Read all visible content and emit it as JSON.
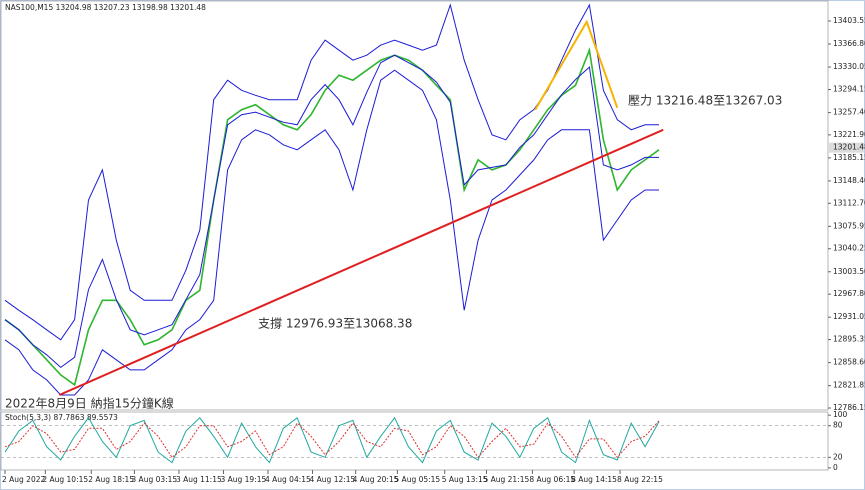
{
  "chart_data": [
    {
      "type": "line",
      "title": "NAS100,M15  13204.98 13207.23 13198.98 13201.48",
      "annotations": [
        "壓力 13216.48至13267.03",
        "支撐 12976.93至13068.38",
        "2022年8月9日 納指15分鐘K線"
      ],
      "x": [
        0,
        10,
        20,
        30,
        40,
        50,
        60,
        70,
        80,
        90,
        100,
        110,
        120,
        130,
        140,
        150,
        160,
        170,
        180,
        190,
        200,
        210,
        220,
        230,
        240,
        250,
        260,
        270,
        280,
        290,
        300,
        310,
        320,
        330,
        340,
        350,
        360,
        370,
        380,
        390,
        400,
        410,
        420,
        430,
        440,
        450,
        460,
        470
      ],
      "xlim": [
        0,
        590
      ],
      "xticks": [
        {
          "value": 0,
          "label": "2 Aug 2022"
        },
        {
          "value": 29,
          "label": "2 Aug 10:15"
        },
        {
          "value": 62,
          "label": "2 Aug 18:15"
        },
        {
          "value": 93,
          "label": "3 Aug 03:15"
        },
        {
          "value": 125,
          "label": "3 Aug 11:15"
        },
        {
          "value": 157,
          "label": "3 Aug 19:15"
        },
        {
          "value": 189,
          "label": "4 Aug 04:15"
        },
        {
          "value": 221,
          "label": "4 Aug 12:15"
        },
        {
          "value": 252,
          "label": "4 Aug 20:15"
        },
        {
          "value": 282,
          "label": "5 Aug 05:15"
        },
        {
          "value": 316,
          "label": "5 Aug 13:15"
        },
        {
          "value": 346,
          "label": "5 Aug 21:15"
        },
        {
          "value": 379,
          "label": "8 Aug 06:15"
        },
        {
          "value": 409,
          "label": "8 Aug 14:15"
        },
        {
          "value": 442,
          "label": "8 Aug 22:15"
        }
      ],
      "ylim": [
        12783,
        13437
      ],
      "yticks": [
        13403.55,
        {
          "value": 13366.8,
          "label": "13366.80"
        },
        {
          "value": 13330.05,
          "label": "13330.05"
        },
        {
          "value": 13294.15,
          "label": "13294.15"
        },
        {
          "value": 13257.4,
          "label": "13257.40"
        },
        {
          "value": 13221.9,
          "label": "13221.90"
        },
        {
          "value": 13185.15,
          "label": "13185.15"
        },
        {
          "value": 13148.4,
          "label": "13148.40"
        },
        {
          "value": 13112.7,
          "label": "13112.70"
        },
        13075.95,
        13040.25,
        {
          "value": 13003.5,
          "label": "13003.50"
        },
        {
          "value": 12967.8,
          "label": "12967.80"
        },
        12931.05,
        12895.35,
        {
          "value": 12858.6,
          "label": "12858.60"
        },
        12821.85,
        12786.15
      ],
      "last_price": 13201.48,
      "series": [
        {
          "name": "price",
          "color": "#2fb52f",
          "values": [
            12927,
            12911,
            12887,
            12863,
            12839,
            12823,
            12911,
            12958,
            12958,
            12927,
            12887,
            12895,
            12911,
            12958,
            12974,
            13118,
            13246,
            13262,
            13270,
            13254,
            13238,
            13230,
            13254,
            13293,
            13317,
            13309,
            13325,
            13341,
            13349,
            13341,
            13325,
            13301,
            13278,
            13134,
            13182,
            13166,
            13174,
            13198,
            13230,
            13262,
            13285,
            13301,
            13357,
            13214,
            13134,
            13166,
            13182,
            13198
          ]
        },
        {
          "name": "upper",
          "color": "#1c1cd6",
          "values": [
            12958,
            12942,
            12927,
            12911,
            12895,
            12927,
            13118,
            13166,
            13054,
            12974,
            12958,
            12958,
            12958,
            13006,
            13070,
            13278,
            13309,
            13293,
            13285,
            13278,
            13278,
            13278,
            13341,
            13373,
            13357,
            13341,
            13349,
            13365,
            13373,
            13365,
            13357,
            13365,
            13429,
            13341,
            13278,
            13222,
            13214,
            13246,
            13262,
            13293,
            13341,
            13389,
            13429,
            13293,
            13246,
            13230,
            13238,
            13238
          ]
        },
        {
          "name": "middle",
          "color": "#1c1cd6",
          "values": [
            12927,
            12911,
            12887,
            12871,
            12851,
            12867,
            12975,
            13023,
            12959,
            12911,
            12903,
            12911,
            12919,
            12959,
            12999,
            13118,
            13238,
            13254,
            13258,
            13250,
            13242,
            13238,
            13278,
            13302,
            13278,
            13238,
            13290,
            13337,
            13349,
            13337,
            13325,
            13306,
            13274,
            13142,
            13166,
            13170,
            13174,
            13202,
            13222,
            13254,
            13286,
            13310,
            13330,
            13174,
            13166,
            13174,
            13186,
            13186
          ]
        },
        {
          "name": "lower",
          "color": "#1c1cd6",
          "values": [
            12895,
            12879,
            12847,
            12831,
            12807,
            12807,
            12831,
            12879,
            12863,
            12847,
            12847,
            12863,
            12879,
            12911,
            12927,
            12958,
            13166,
            13214,
            13230,
            13222,
            13206,
            13198,
            13214,
            13230,
            13198,
            13134,
            13230,
            13309,
            13325,
            13309,
            13293,
            13246,
            13118,
            12942,
            13054,
            13118,
            13134,
            13158,
            13182,
            13214,
            13230,
            13230,
            13230,
            13054,
            13086,
            13118,
            13134,
            13134
          ]
        }
      ],
      "trendlines": [
        {
          "color": "#e02020",
          "x": [
            39,
            473
          ],
          "y": [
            12807,
            13230
          ]
        },
        {
          "color": "#f5b400",
          "x": [
            381,
            418,
            440
          ],
          "y": [
            13262,
            13402,
            13265
          ]
        }
      ]
    },
    {
      "type": "line",
      "title": "Stoch(5,3,3) 87.7863 89.5573",
      "x": [
        0,
        10,
        20,
        30,
        40,
        50,
        60,
        70,
        80,
        90,
        100,
        110,
        120,
        130,
        140,
        150,
        160,
        170,
        180,
        190,
        200,
        210,
        220,
        230,
        240,
        250,
        260,
        270,
        280,
        290,
        300,
        310,
        320,
        330,
        340,
        350,
        360,
        370,
        380,
        390,
        400,
        410,
        420,
        430,
        440,
        450,
        460,
        470
      ],
      "xlim": [
        0,
        590
      ],
      "ylim": [
        -4,
        106
      ],
      "yticks": [
        0,
        20,
        80,
        100
      ],
      "levels": [
        20,
        80
      ],
      "series": [
        {
          "name": "main",
          "color": "#20a8a0",
          "values": [
            30,
            70,
            90,
            40,
            15,
            60,
            95,
            50,
            20,
            80,
            90,
            30,
            10,
            70,
            95,
            60,
            20,
            85,
            40,
            10,
            75,
            95,
            30,
            20,
            80,
            90,
            20,
            60,
            95,
            40,
            10,
            70,
            90,
            30,
            15,
            85,
            60,
            20,
            75,
            95,
            30,
            10,
            90,
            25,
            15,
            85,
            40,
            87.7863
          ]
        },
        {
          "name": "signal",
          "color": "#e03030",
          "values": [
            40,
            50,
            80,
            65,
            30,
            35,
            75,
            75,
            35,
            50,
            85,
            60,
            20,
            40,
            80,
            80,
            40,
            50,
            70,
            25,
            40,
            85,
            60,
            25,
            50,
            85,
            50,
            40,
            75,
            70,
            25,
            40,
            80,
            60,
            20,
            50,
            75,
            40,
            45,
            85,
            60,
            20,
            55,
            55,
            20,
            50,
            60,
            89.5573
          ]
        }
      ]
    }
  ]
}
